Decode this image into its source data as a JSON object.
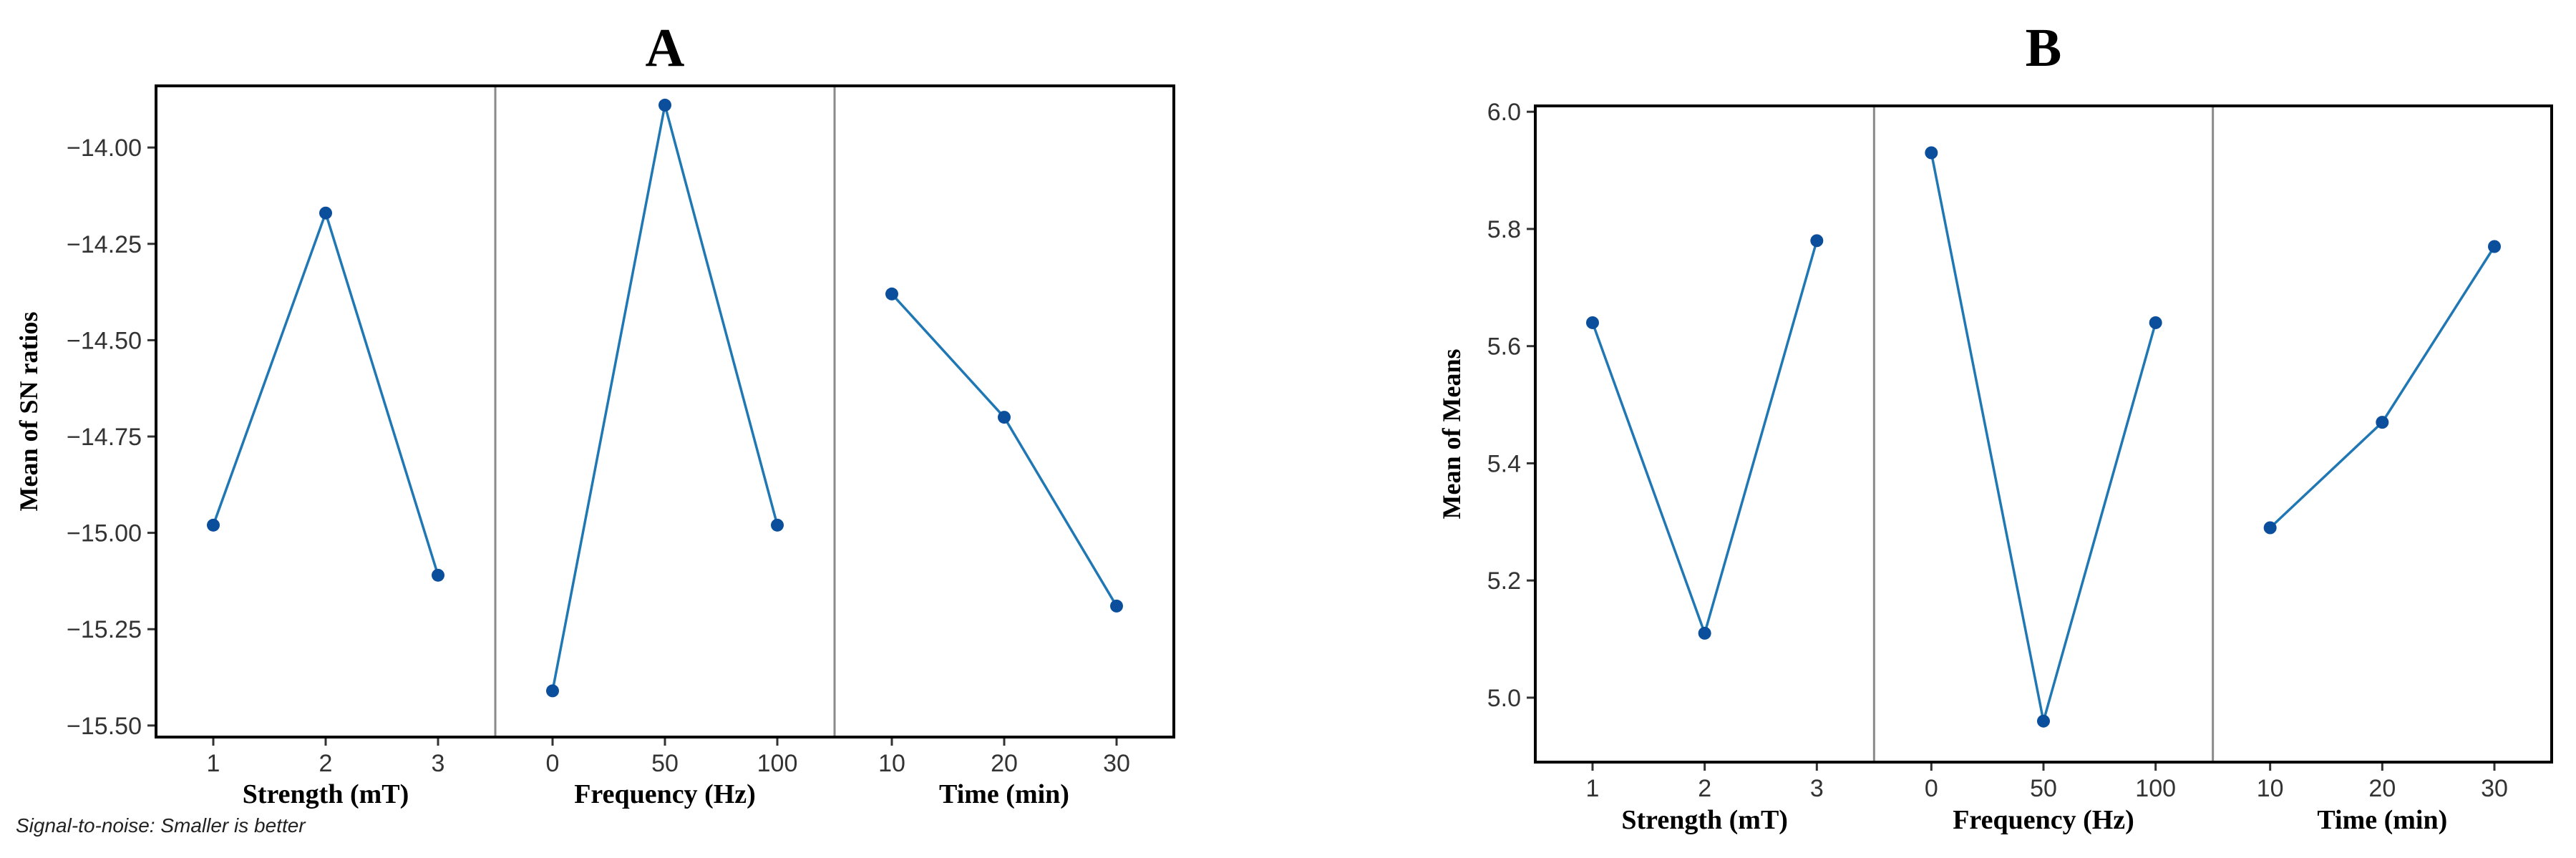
{
  "colors": {
    "line": "#1f77b4",
    "marker": "#0b4f9c"
  },
  "footnote": "Signal-to-noise: Smaller is better",
  "chart_data": [
    {
      "type": "line",
      "title": "A",
      "ylabel": "Mean of SN ratios",
      "ylim": [
        -15.53,
        -13.84
      ],
      "yticks": [
        -14.0,
        -14.25,
        -14.5,
        -14.75,
        -15.0,
        -15.25,
        -15.5
      ],
      "ytick_labels": [
        "−14.00",
        "−14.25",
        "−14.50",
        "−14.75",
        "−15.00",
        "−15.25",
        "−15.50"
      ],
      "factors": [
        {
          "name": "Strength (mT)",
          "levels": [
            "1",
            "2",
            "3"
          ],
          "values": [
            -14.98,
            -14.17,
            -15.11
          ]
        },
        {
          "name": "Frequency (Hz)",
          "levels": [
            "0",
            "50",
            "100"
          ],
          "values": [
            -15.41,
            -13.89,
            -14.98
          ]
        },
        {
          "name": "Time (min)",
          "levels": [
            "10",
            "20",
            "30"
          ],
          "values": [
            -14.38,
            -14.7,
            -15.19
          ]
        }
      ]
    },
    {
      "type": "line",
      "title": "B",
      "ylabel": "Mean of Means",
      "ylim": [
        4.89,
        6.01
      ],
      "yticks": [
        5.0,
        5.2,
        5.4,
        5.6,
        5.8,
        6.0
      ],
      "ytick_labels": [
        "5.0",
        "5.2",
        "5.4",
        "5.6",
        "5.8",
        "6.0"
      ],
      "factors": [
        {
          "name": "Strength (mT)",
          "levels": [
            "1",
            "2",
            "3"
          ],
          "values": [
            5.64,
            5.11,
            5.78
          ]
        },
        {
          "name": "Frequency (Hz)",
          "levels": [
            "0",
            "50",
            "100"
          ],
          "values": [
            5.93,
            4.96,
            5.64
          ]
        },
        {
          "name": "Time (min)",
          "levels": [
            "10",
            "20",
            "30"
          ],
          "values": [
            5.29,
            5.47,
            5.77
          ]
        }
      ]
    }
  ]
}
